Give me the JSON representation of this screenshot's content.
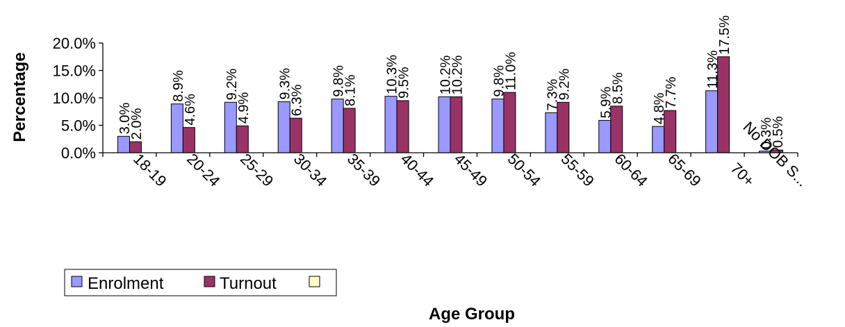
{
  "chart_data": {
    "type": "bar",
    "title": "",
    "xlabel": "Age Group",
    "ylabel": "Percentage",
    "ylim": [
      0,
      20
    ],
    "yticks": [
      "0.0%",
      "5.0%",
      "10.0%",
      "15.0%",
      "20.0%"
    ],
    "grid": false,
    "legend_position": "bottom-left",
    "categories": [
      "18-19",
      "20-24",
      "25-29",
      "30-34",
      "35-39",
      "40-44",
      "45-49",
      "50-54",
      "55-59",
      "60-64",
      "65-69",
      "70+",
      "No DOB S..."
    ],
    "series": [
      {
        "name": "Enrolment",
        "color": "#9999FF",
        "values": [
          3.0,
          8.9,
          9.2,
          9.3,
          9.8,
          10.3,
          10.2,
          9.8,
          7.3,
          5.9,
          4.8,
          11.3,
          0.3
        ],
        "labels": [
          "3.0%",
          "8.9%",
          "9.2%",
          "9.3%",
          "9.8%",
          "10.3%",
          "10.2%",
          "9.8%",
          "7.3%",
          "5.9%",
          "4.8%",
          "11.3%",
          "0.3%"
        ]
      },
      {
        "name": "Turnout",
        "color": "#993366",
        "values": [
          2.0,
          4.6,
          4.9,
          6.3,
          8.1,
          9.5,
          10.2,
          11.0,
          9.2,
          8.5,
          7.7,
          17.5,
          0.5
        ],
        "labels": [
          "2.0%",
          "4.6%",
          "4.9%",
          "6.3%",
          "8.1%",
          "9.5%",
          "10.2%",
          "11.0%",
          "9.2%",
          "8.5%",
          "7.7%",
          "17.5%",
          "0.5%"
        ]
      }
    ],
    "legend": [
      {
        "name": "Enrolment",
        "color": "#9999FF"
      },
      {
        "name": "Turnout",
        "color": "#993366"
      },
      {
        "name": "",
        "color": "#FFFFCC"
      }
    ]
  }
}
